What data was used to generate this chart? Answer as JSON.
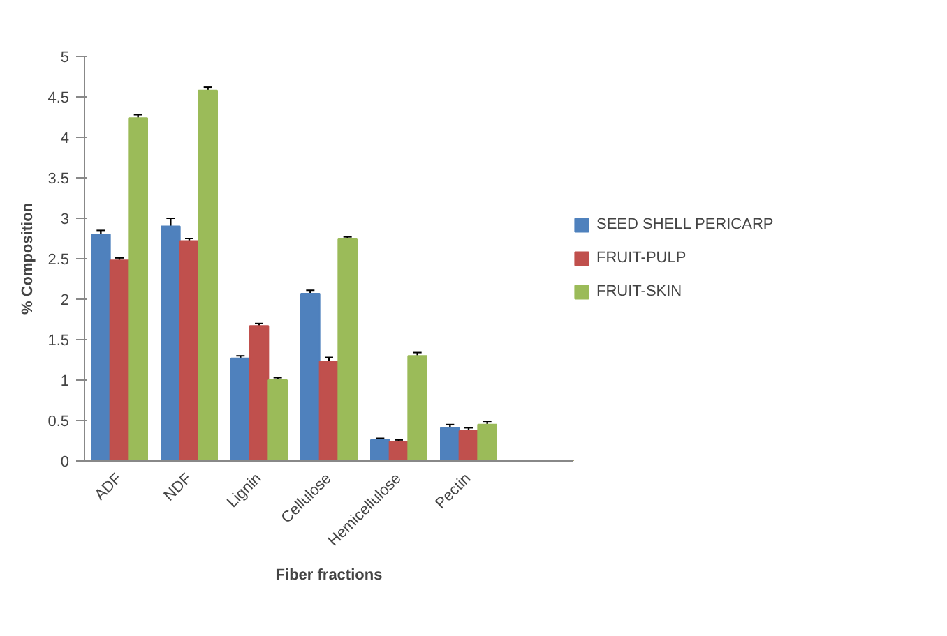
{
  "chart_data": {
    "type": "bar",
    "xlabel": "Fiber fractions",
    "ylabel": "% Composition",
    "categories": [
      "ADF",
      "NDF",
      "Lignin",
      "Cellulose",
      "Hemicellulose",
      "Pectin",
      null
    ],
    "series": [
      {
        "name": "SEED SHELL PERICARP",
        "color": "#4f81bd",
        "values": [
          2.8,
          2.9,
          1.27,
          2.07,
          0.26,
          0.41,
          null
        ],
        "errors": [
          0.05,
          0.1,
          0.03,
          0.04,
          0.02,
          0.04,
          null
        ]
      },
      {
        "name": "FRUIT-PULP",
        "color": "#c0504d",
        "values": [
          2.48,
          2.72,
          1.67,
          1.23,
          0.24,
          0.37,
          null
        ],
        "errors": [
          0.03,
          0.03,
          0.03,
          0.05,
          0.02,
          0.04,
          null
        ]
      },
      {
        "name": "FRUIT-SKIN",
        "color": "#9bbb59",
        "values": [
          4.24,
          4.58,
          1.0,
          2.75,
          1.3,
          0.45,
          null
        ],
        "errors": [
          0.04,
          0.04,
          0.03,
          0.02,
          0.04,
          0.04,
          null
        ]
      }
    ],
    "ylim": [
      0,
      5
    ],
    "yticks": [
      0,
      0.5,
      1,
      1.5,
      2,
      2.5,
      3,
      3.5,
      4,
      4.5,
      5
    ],
    "grid": false,
    "legend": "right"
  }
}
